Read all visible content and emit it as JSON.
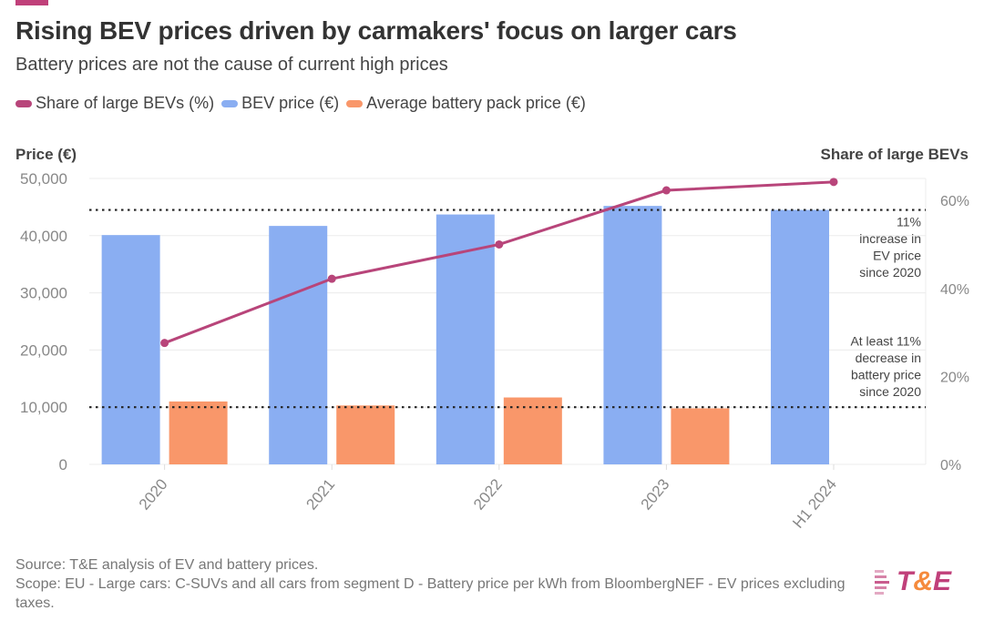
{
  "header": {
    "title": "Rising BEV prices driven by carmakers' focus on larger cars",
    "subtitle": "Battery prices are not the cause of current high prices"
  },
  "legend": [
    {
      "label": "Share of large BEVs (%)",
      "color": "#b8457a"
    },
    {
      "label": "BEV price (€)",
      "color": "#8aaef2"
    },
    {
      "label": "Average battery pack price (€)",
      "color": "#f9976a"
    }
  ],
  "chart_data": {
    "type": "bar",
    "title": "Rising BEV prices driven by carmakers' focus on larger cars",
    "subtitle": "Battery prices are not the cause of current high prices",
    "categories": [
      "2020",
      "2021",
      "2022",
      "2023",
      "H1 2024"
    ],
    "series": [
      {
        "name": "BEV price (€)",
        "type": "bar",
        "axis": "left",
        "color": "#8aaef2",
        "values": [
          40100,
          41700,
          43700,
          45200,
          44500
        ]
      },
      {
        "name": "Average battery pack price (€)",
        "type": "bar",
        "axis": "left",
        "color": "#f9976a",
        "values": [
          11000,
          10300,
          11700,
          9800,
          null
        ]
      },
      {
        "name": "Share of large BEVs (%)",
        "type": "line",
        "axis": "right",
        "color": "#b8457a",
        "values": [
          27.6,
          42.2,
          50.0,
          62.3,
          64.2
        ]
      }
    ],
    "ylabel": "Price (€)",
    "ylim": [
      0,
      50000
    ],
    "yticks": [
      0,
      10000,
      20000,
      30000,
      40000,
      50000
    ],
    "ytick_labels": [
      "0",
      "10,000",
      "20,000",
      "30,000",
      "40,000",
      "50,000"
    ],
    "y2label": "Share of large BEVs",
    "y2lim": [
      0,
      65
    ],
    "y2ticks": [
      0,
      20,
      40,
      60
    ],
    "y2tick_labels": [
      "0%",
      "20%",
      "40%",
      "60%"
    ],
    "grid": true,
    "legend_position": "top-left",
    "reference_lines": [
      {
        "value": 44500,
        "axis": "left",
        "style": "dotted",
        "annotation": [
          "11%",
          "increase in",
          "EV price",
          "since 2020"
        ]
      },
      {
        "value": 10000,
        "axis": "left",
        "style": "dotted",
        "annotation": [
          "At least 11%",
          "decrease in",
          "battery price",
          "since 2020"
        ]
      }
    ]
  },
  "footer": {
    "source": "Source: T&E analysis of EV and battery prices.",
    "scope": "Scope: EU - Large cars: C-SUVs and all cars from segment D - Battery price per kWh from BloombergNEF - EV prices excluding taxes."
  },
  "logo": {
    "t": "T",
    "amp": "&",
    "e": "E"
  }
}
